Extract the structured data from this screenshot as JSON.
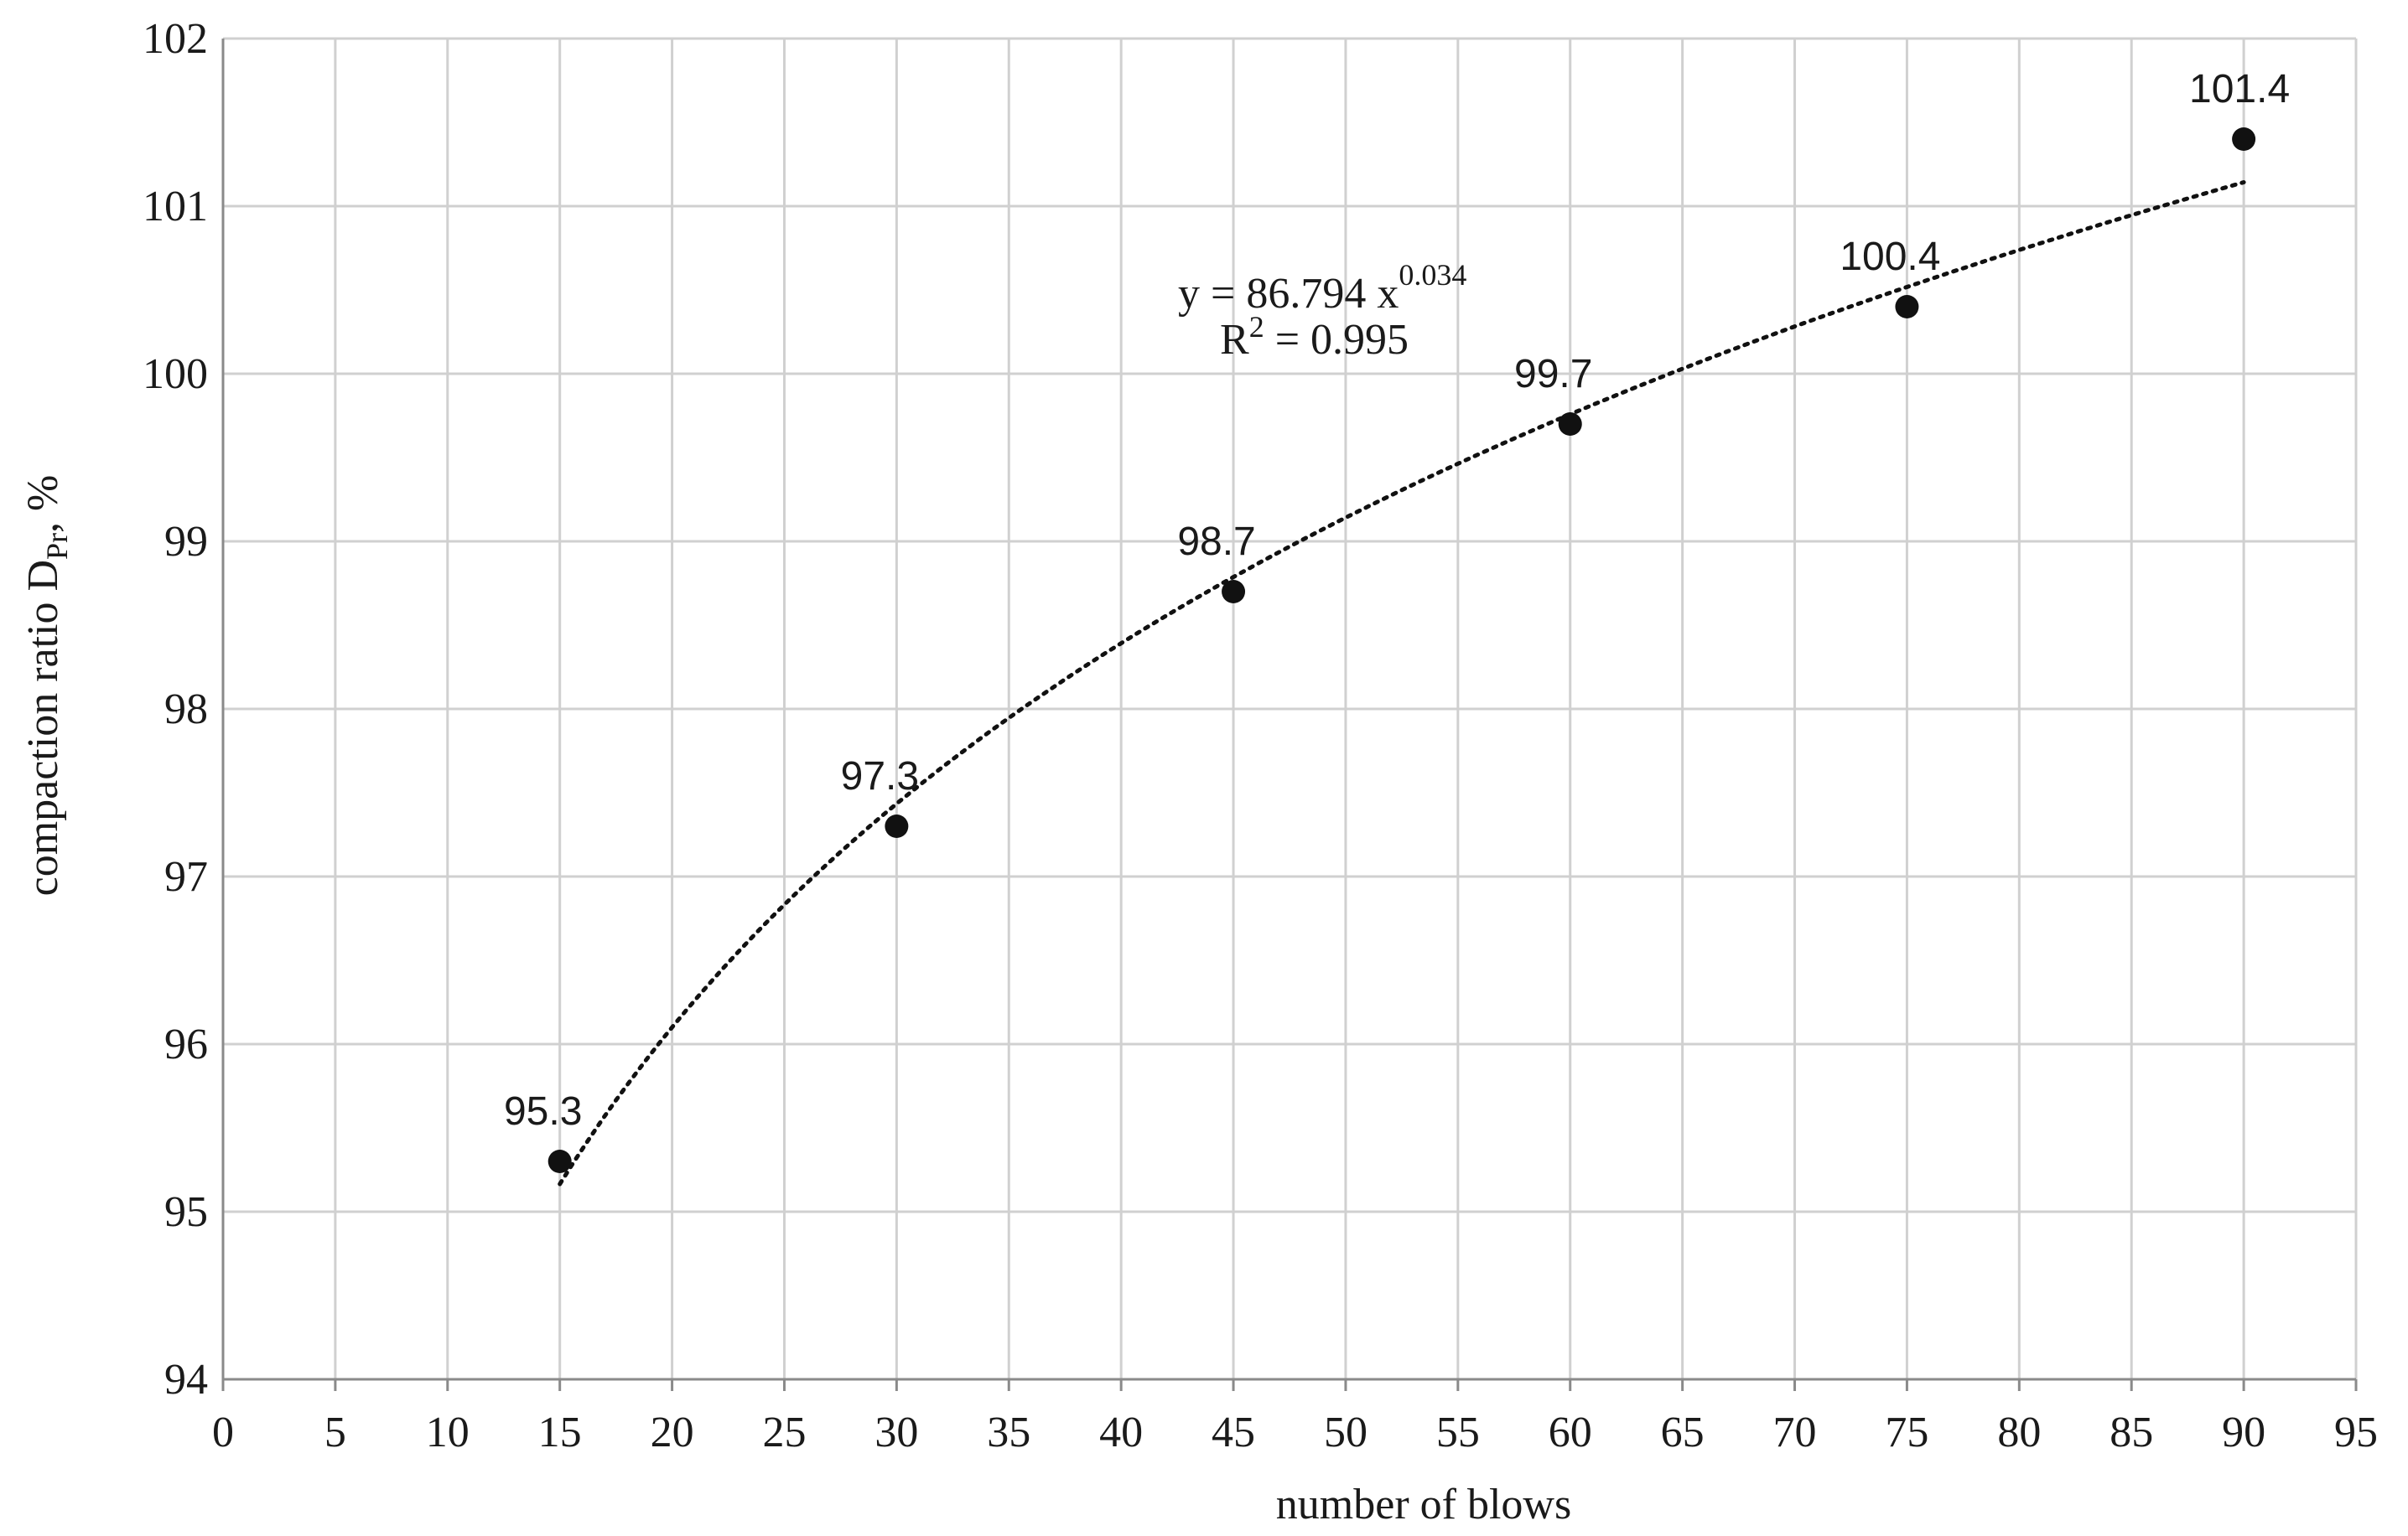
{
  "chart_data": {
    "type": "scatter",
    "xlabel": "number of blows",
    "ylabel": {
      "main": "compaction  ratio D",
      "subscript": "Pr",
      "suffix": ", %"
    },
    "xlim": [
      0,
      95
    ],
    "ylim": [
      94,
      102
    ],
    "xticks": [
      0,
      5,
      10,
      15,
      20,
      25,
      30,
      35,
      40,
      45,
      50,
      55,
      60,
      65,
      70,
      75,
      80,
      85,
      90,
      95
    ],
    "yticks": [
      94,
      95,
      96,
      97,
      98,
      99,
      100,
      101,
      102
    ],
    "grid": true,
    "points": [
      {
        "x": 15,
        "y": 95.3,
        "label": "95.3"
      },
      {
        "x": 30,
        "y": 97.3,
        "label": "97.3"
      },
      {
        "x": 45,
        "y": 98.7,
        "label": "98.7"
      },
      {
        "x": 60,
        "y": 99.7,
        "label": "99.7"
      },
      {
        "x": 75,
        "y": 100.4,
        "label": "100.4"
      },
      {
        "x": 90,
        "y": 101.4,
        "label": "101.4"
      }
    ],
    "trendline": {
      "type": "power",
      "coefficient": 86.794,
      "exponent": 0.034,
      "x_range": [
        15,
        90
      ],
      "equation_prefix": "y = 86.794 x",
      "equation_exponent": "0.034",
      "r2_prefix": "R",
      "r2_superscript": "2",
      "r2_suffix": " = 0.995"
    },
    "colors": {
      "grid": "#d0d0d0",
      "axis": "#8a8a8a",
      "marker": "#111111",
      "trend": "#111111"
    }
  }
}
